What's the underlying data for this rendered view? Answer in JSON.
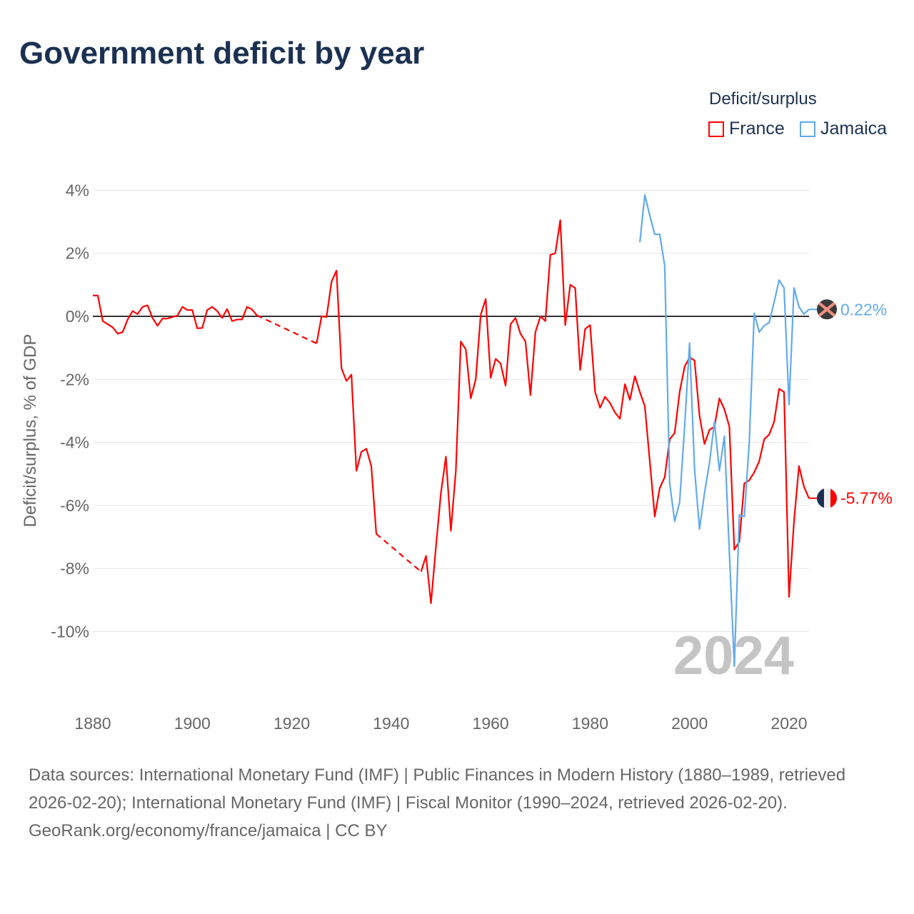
{
  "title": "Government deficit by year",
  "legend": {
    "title": "Deficit/surplus",
    "items": [
      {
        "name": "France",
        "color": "#ff0000"
      },
      {
        "name": "Jamaica",
        "color": "#62aaeb"
      }
    ]
  },
  "year_label": "2024",
  "footer": {
    "sources": "Data sources: International Monetary Fund (IMF) | Public Finances in Modern History (1880–1989, retrieved 2026-02-20); International Monetary Fund (IMF) | Fiscal Monitor (1990–2024, retrieved 2026-02-20).",
    "credit": "GeoRank.org/economy/france/jamaica | CC BY"
  },
  "chart_data": {
    "type": "line",
    "title": "Government deficit by year",
    "xlabel": "",
    "ylabel": "Deficit/surplus, % of GDP",
    "xlim": [
      1880,
      2024
    ],
    "ylim": [
      -12.5,
      4.5
    ],
    "xticks": [
      1880,
      1900,
      1920,
      1940,
      1960,
      1980,
      2000,
      2020
    ],
    "yticks": [
      4,
      2,
      0,
      -2,
      -4,
      -6,
      -8,
      -10
    ],
    "ytick_labels": [
      "4%",
      "2%",
      "0%",
      "-2%",
      "-4%",
      "-6%",
      "-8%",
      "-10%"
    ],
    "grid": true,
    "legend_position": "top-right",
    "series": [
      {
        "name": "France",
        "color": "#ff0000",
        "end_label": "-5.77%",
        "dashed_gaps": [
          [
            1913,
            1925
          ],
          [
            1937,
            1946
          ]
        ],
        "points": [
          [
            1880,
            0.66
          ],
          [
            1881,
            0.66
          ],
          [
            1882,
            -0.15
          ],
          [
            1883,
            -0.25
          ],
          [
            1884,
            -0.35
          ],
          [
            1885,
            -0.55
          ],
          [
            1886,
            -0.5
          ],
          [
            1887,
            -0.1
          ],
          [
            1888,
            0.17
          ],
          [
            1889,
            0.07
          ],
          [
            1890,
            0.3
          ],
          [
            1891,
            0.35
          ],
          [
            1892,
            -0.05
          ],
          [
            1893,
            -0.3
          ],
          [
            1894,
            -0.07
          ],
          [
            1895,
            -0.07
          ],
          [
            1896,
            -0.02
          ],
          [
            1897,
            0.02
          ],
          [
            1898,
            0.3
          ],
          [
            1899,
            0.2
          ],
          [
            1900,
            0.2
          ],
          [
            1901,
            -0.38
          ],
          [
            1902,
            -0.37
          ],
          [
            1903,
            0.2
          ],
          [
            1904,
            0.3
          ],
          [
            1905,
            0.17
          ],
          [
            1906,
            -0.05
          ],
          [
            1907,
            0.23
          ],
          [
            1908,
            -0.15
          ],
          [
            1909,
            -0.1
          ],
          [
            1910,
            -0.1
          ],
          [
            1911,
            0.3
          ],
          [
            1912,
            0.22
          ],
          [
            1913,
            0.03
          ],
          [
            1925,
            -0.86
          ],
          [
            1926,
            0.0
          ],
          [
            1927,
            -0.02
          ],
          [
            1928,
            1.1
          ],
          [
            1929,
            1.45
          ],
          [
            1930,
            -1.65
          ],
          [
            1931,
            -2.05
          ],
          [
            1932,
            -1.85
          ],
          [
            1933,
            -4.9
          ],
          [
            1934,
            -4.3
          ],
          [
            1935,
            -4.2
          ],
          [
            1936,
            -4.75
          ],
          [
            1937,
            -6.9
          ],
          [
            1946,
            -8.1
          ],
          [
            1947,
            -7.6
          ],
          [
            1948,
            -9.1
          ],
          [
            1949,
            -7.3
          ],
          [
            1950,
            -5.6
          ],
          [
            1951,
            -4.45
          ],
          [
            1952,
            -6.8
          ],
          [
            1953,
            -4.9
          ],
          [
            1954,
            -0.8
          ],
          [
            1955,
            -1.05
          ],
          [
            1956,
            -2.6
          ],
          [
            1957,
            -2.0
          ],
          [
            1958,
            0.05
          ],
          [
            1959,
            0.55
          ],
          [
            1960,
            -1.95
          ],
          [
            1961,
            -1.35
          ],
          [
            1962,
            -1.5
          ],
          [
            1963,
            -2.2
          ],
          [
            1964,
            -0.25
          ],
          [
            1965,
            -0.05
          ],
          [
            1966,
            -0.55
          ],
          [
            1967,
            -0.8
          ],
          [
            1968,
            -2.5
          ],
          [
            1969,
            -0.5
          ],
          [
            1970,
            0.0
          ],
          [
            1971,
            -0.15
          ],
          [
            1972,
            1.95
          ],
          [
            1973,
            2.0
          ],
          [
            1974,
            3.05
          ],
          [
            1975,
            -0.28
          ],
          [
            1976,
            1.0
          ],
          [
            1977,
            0.9
          ],
          [
            1978,
            -1.7
          ],
          [
            1979,
            -0.4
          ],
          [
            1980,
            -0.28
          ],
          [
            1981,
            -2.4
          ],
          [
            1982,
            -2.9
          ],
          [
            1983,
            -2.55
          ],
          [
            1984,
            -2.75
          ],
          [
            1985,
            -3.05
          ],
          [
            1986,
            -3.25
          ],
          [
            1987,
            -2.15
          ],
          [
            1988,
            -2.65
          ],
          [
            1989,
            -1.9
          ],
          [
            1990,
            -2.4
          ],
          [
            1991,
            -2.85
          ],
          [
            1992,
            -4.6
          ],
          [
            1993,
            -6.35
          ],
          [
            1994,
            -5.45
          ],
          [
            1995,
            -5.1
          ],
          [
            1996,
            -3.9
          ],
          [
            1997,
            -3.7
          ],
          [
            1998,
            -2.4
          ],
          [
            1999,
            -1.6
          ],
          [
            2000,
            -1.3
          ],
          [
            2001,
            -1.4
          ],
          [
            2002,
            -3.15
          ],
          [
            2003,
            -4.05
          ],
          [
            2004,
            -3.6
          ],
          [
            2005,
            -3.5
          ],
          [
            2006,
            -2.6
          ],
          [
            2007,
            -2.95
          ],
          [
            2008,
            -3.5
          ],
          [
            2009,
            -7.4
          ],
          [
            2010,
            -7.15
          ],
          [
            2011,
            -5.3
          ],
          [
            2012,
            -5.2
          ],
          [
            2013,
            -4.95
          ],
          [
            2014,
            -4.6
          ],
          [
            2015,
            -3.9
          ],
          [
            2016,
            -3.75
          ],
          [
            2017,
            -3.35
          ],
          [
            2018,
            -2.3
          ],
          [
            2019,
            -2.4
          ],
          [
            2020,
            -8.9
          ],
          [
            2021,
            -6.5
          ],
          [
            2022,
            -4.75
          ],
          [
            2023,
            -5.4
          ],
          [
            2024,
            -5.77
          ]
        ]
      },
      {
        "name": "Jamaica",
        "color": "#62aaeb",
        "end_label": "0.22%",
        "dashed_gaps": [],
        "points": [
          [
            1990,
            2.35
          ],
          [
            1991,
            3.85
          ],
          [
            1992,
            3.2
          ],
          [
            1993,
            2.6
          ],
          [
            1994,
            2.6
          ],
          [
            1995,
            1.6
          ],
          [
            1996,
            -5.3
          ],
          [
            1997,
            -6.5
          ],
          [
            1998,
            -5.9
          ],
          [
            1999,
            -3.5
          ],
          [
            2000,
            -0.85
          ],
          [
            2001,
            -4.85
          ],
          [
            2002,
            -6.75
          ],
          [
            2003,
            -5.6
          ],
          [
            2004,
            -4.65
          ],
          [
            2005,
            -3.35
          ],
          [
            2006,
            -4.9
          ],
          [
            2007,
            -3.8
          ],
          [
            2008,
            -7.5
          ],
          [
            2009,
            -11.1
          ],
          [
            2010,
            -6.3
          ],
          [
            2011,
            -6.35
          ],
          [
            2012,
            -4.0
          ],
          [
            2013,
            0.1
          ],
          [
            2014,
            -0.5
          ],
          [
            2015,
            -0.3
          ],
          [
            2016,
            -0.2
          ],
          [
            2017,
            0.45
          ],
          [
            2018,
            1.15
          ],
          [
            2019,
            0.9
          ],
          [
            2020,
            -2.8
          ],
          [
            2021,
            0.9
          ],
          [
            2022,
            0.3
          ],
          [
            2023,
            0.07
          ],
          [
            2024,
            0.22
          ]
        ]
      }
    ]
  }
}
